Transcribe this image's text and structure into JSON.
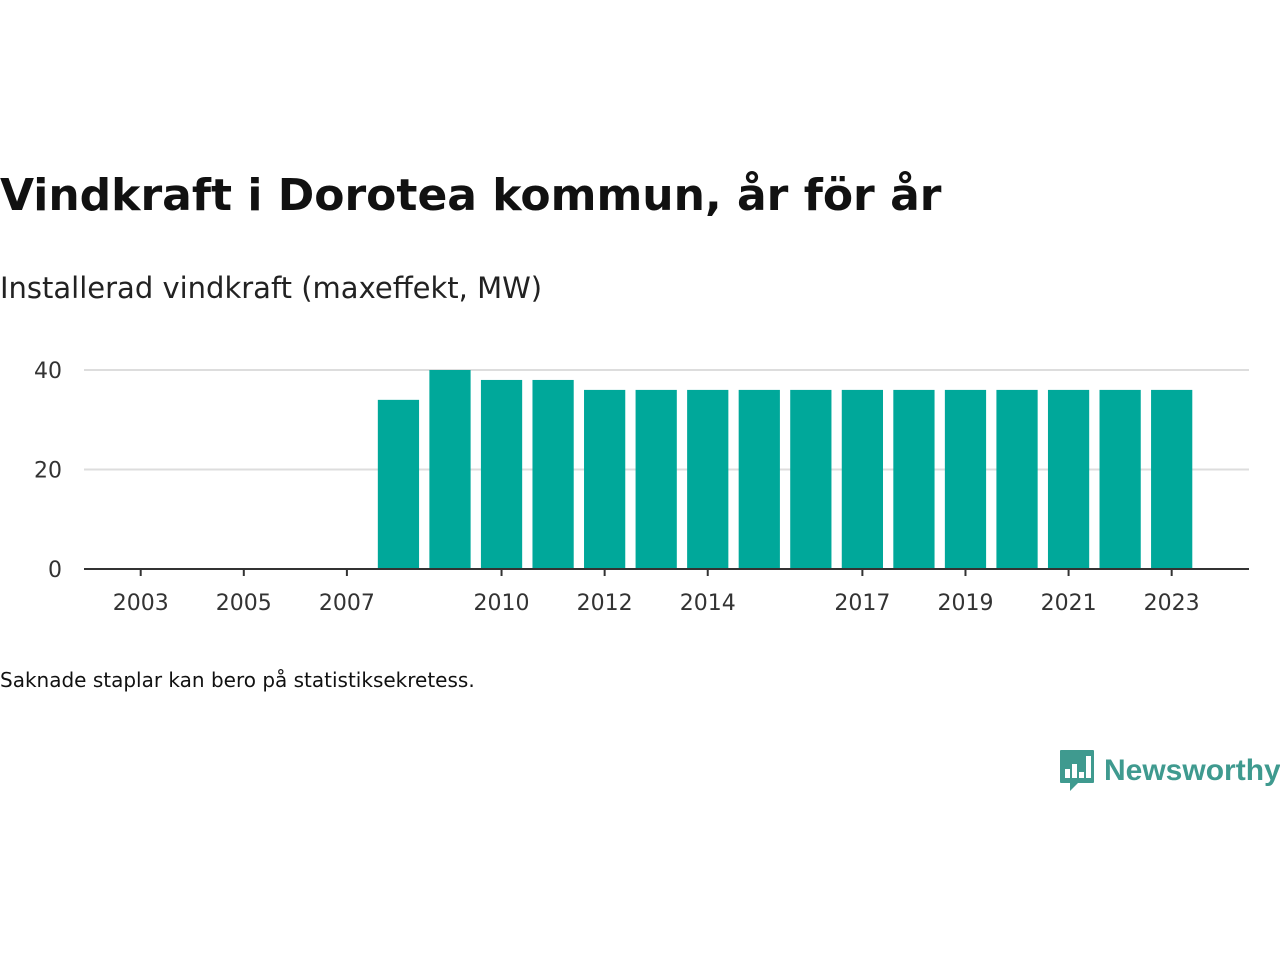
{
  "header": {
    "title": "Vindkraft i Dorotea kommun, år för år",
    "subtitle": "Installerad vindkraft (maxeffekt, MW)"
  },
  "footer": {
    "note": "Saknade staplar kan bero på statistiksekretess.",
    "brand": "Newsworthy",
    "brand_icon": "newsworthy-chart-bubble-icon"
  },
  "colors": {
    "bar": "#00a89a",
    "gridline": "#dddddd",
    "axis": "#333333",
    "brand": "#3f9a8f"
  },
  "chart_data": {
    "type": "bar",
    "title": "Vindkraft i Dorotea kommun, år för år",
    "subtitle": "Installerad vindkraft (maxeffekt, MW)",
    "xlabel": "",
    "ylabel": "",
    "xlim": [
      2001.9,
      2024.5
    ],
    "ylim": [
      0,
      40
    ],
    "yticks": [
      0,
      20,
      40
    ],
    "xticks": [
      2003,
      2005,
      2007,
      2010,
      2012,
      2014,
      2017,
      2019,
      2021,
      2023
    ],
    "grid": true,
    "legend": "none",
    "series": [
      {
        "x": [
          2008,
          2009,
          2010,
          2011,
          2012,
          2013,
          2014,
          2015,
          2016,
          2017,
          2018,
          2019,
          2020,
          2021,
          2022,
          2023
        ],
        "values": [
          34,
          40,
          38,
          38,
          36,
          36,
          36,
          36,
          36,
          36,
          36,
          36,
          36,
          36,
          36,
          36
        ]
      }
    ]
  }
}
